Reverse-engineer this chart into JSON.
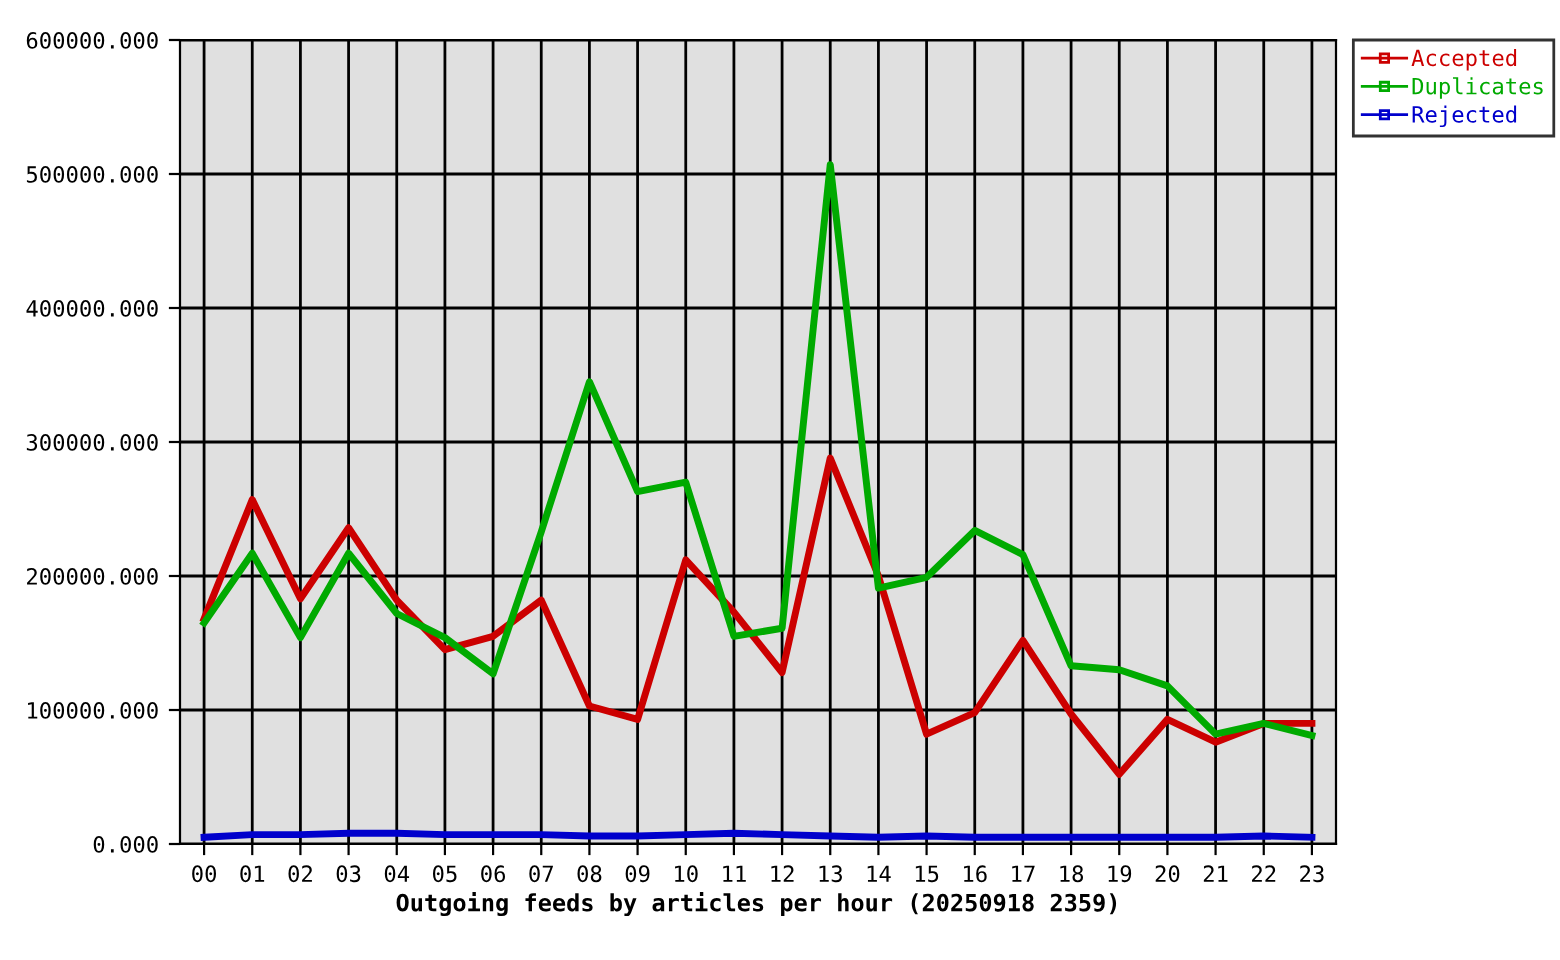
{
  "chart_data": {
    "type": "line",
    "xlabel": "Outgoing feeds by articles per hour (20250918 2359)",
    "categories": [
      "00",
      "01",
      "02",
      "03",
      "04",
      "05",
      "06",
      "07",
      "08",
      "09",
      "10",
      "11",
      "12",
      "13",
      "14",
      "15",
      "16",
      "17",
      "18",
      "19",
      "20",
      "21",
      "22",
      "23"
    ],
    "series": [
      {
        "name": "Accepted",
        "color": "#cc0000",
        "values": [
          168000,
          257000,
          183000,
          236000,
          182000,
          145000,
          155000,
          182000,
          103000,
          93000,
          212000,
          173000,
          128000,
          288000,
          200000,
          82000,
          98000,
          152000,
          97000,
          52000,
          93000,
          76000,
          90000,
          90000
        ]
      },
      {
        "name": "Duplicates",
        "color": "#00aa00",
        "values": [
          165000,
          217000,
          154000,
          217000,
          172000,
          154000,
          127000,
          233000,
          345000,
          263000,
          270000,
          155000,
          161000,
          507000,
          191000,
          199000,
          234000,
          216000,
          133000,
          130000,
          118000,
          82000,
          90000,
          81000
        ]
      },
      {
        "name": "Rejected",
        "color": "#0000cc",
        "values": [
          5000,
          7000,
          7000,
          8000,
          8000,
          7000,
          7000,
          7000,
          6000,
          6000,
          7000,
          8000,
          7000,
          6000,
          5000,
          6000,
          5000,
          5000,
          5000,
          5000,
          5000,
          5000,
          6000,
          5000
        ]
      }
    ],
    "ylim": [
      0,
      600000
    ],
    "yticks": [
      {
        "value": 0,
        "label": "0.000"
      },
      {
        "value": 100000,
        "label": "100000.000"
      },
      {
        "value": 200000,
        "label": "200000.000"
      },
      {
        "value": 300000,
        "label": "300000.000"
      },
      {
        "value": 400000,
        "label": "400000.000"
      },
      {
        "value": 500000,
        "label": "500000.000"
      },
      {
        "value": 600000,
        "label": "600000.000"
      }
    ],
    "grid": true,
    "legend": "top right",
    "marker": "none",
    "line_style": "solid"
  }
}
